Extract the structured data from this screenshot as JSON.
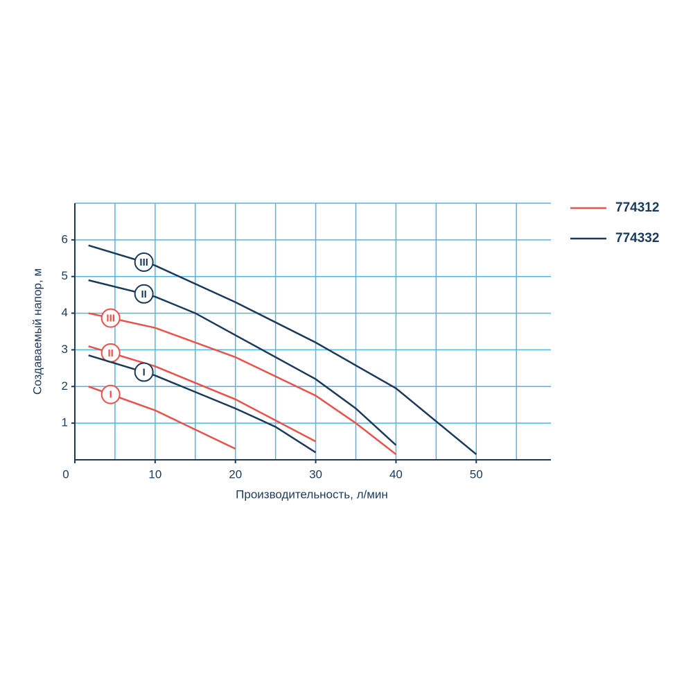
{
  "chart_data": {
    "type": "line",
    "xlabel": "Производительность, л/мин",
    "ylabel": "Создаваемый напор, м",
    "xlim": [
      0,
      59.3
    ],
    "ylim": [
      0,
      7
    ],
    "xticks": [
      0,
      10,
      20,
      30,
      40,
      50
    ],
    "yticks": [
      1,
      2,
      3,
      4,
      5,
      6
    ],
    "xgrid": [
      5,
      10,
      15,
      20,
      25,
      30,
      35,
      40,
      45,
      50,
      55
    ],
    "ygrid": [
      1,
      2,
      3,
      4,
      5,
      6,
      7
    ],
    "grid_color": "#52b6e3",
    "axis_color": "#1b3a5a",
    "series": [
      {
        "name": "774312",
        "color": "#e8524a",
        "curves": [
          {
            "label": "I",
            "x": [
              1.7,
              10,
              20
            ],
            "values": [
              2.0,
              1.35,
              0.3
            ]
          },
          {
            "label": "II",
            "x": [
              1.7,
              10,
              20,
              30
            ],
            "values": [
              3.1,
              2.55,
              1.65,
              0.5
            ]
          },
          {
            "label": "III",
            "x": [
              1.7,
              10,
              20,
              30,
              35,
              40
            ],
            "values": [
              4.0,
              3.6,
              2.8,
              1.75,
              1.0,
              0.15
            ]
          }
        ]
      },
      {
        "name": "774332",
        "color": "#1b3a5a",
        "curves": [
          {
            "label": "I",
            "x": [
              1.7,
              10,
              20,
              25,
              30
            ],
            "values": [
              2.85,
              2.3,
              1.4,
              0.9,
              0.2
            ]
          },
          {
            "label": "II",
            "x": [
              1.7,
              10,
              15,
              20,
              30,
              35,
              40
            ],
            "values": [
              4.9,
              4.45,
              4.0,
              3.4,
              2.2,
              1.4,
              0.4
            ]
          },
          {
            "label": "III",
            "x": [
              1.7,
              10,
              20,
              30,
              40,
              50
            ],
            "values": [
              5.85,
              5.3,
              4.3,
              3.2,
              1.95,
              0.15
            ]
          }
        ]
      }
    ]
  }
}
